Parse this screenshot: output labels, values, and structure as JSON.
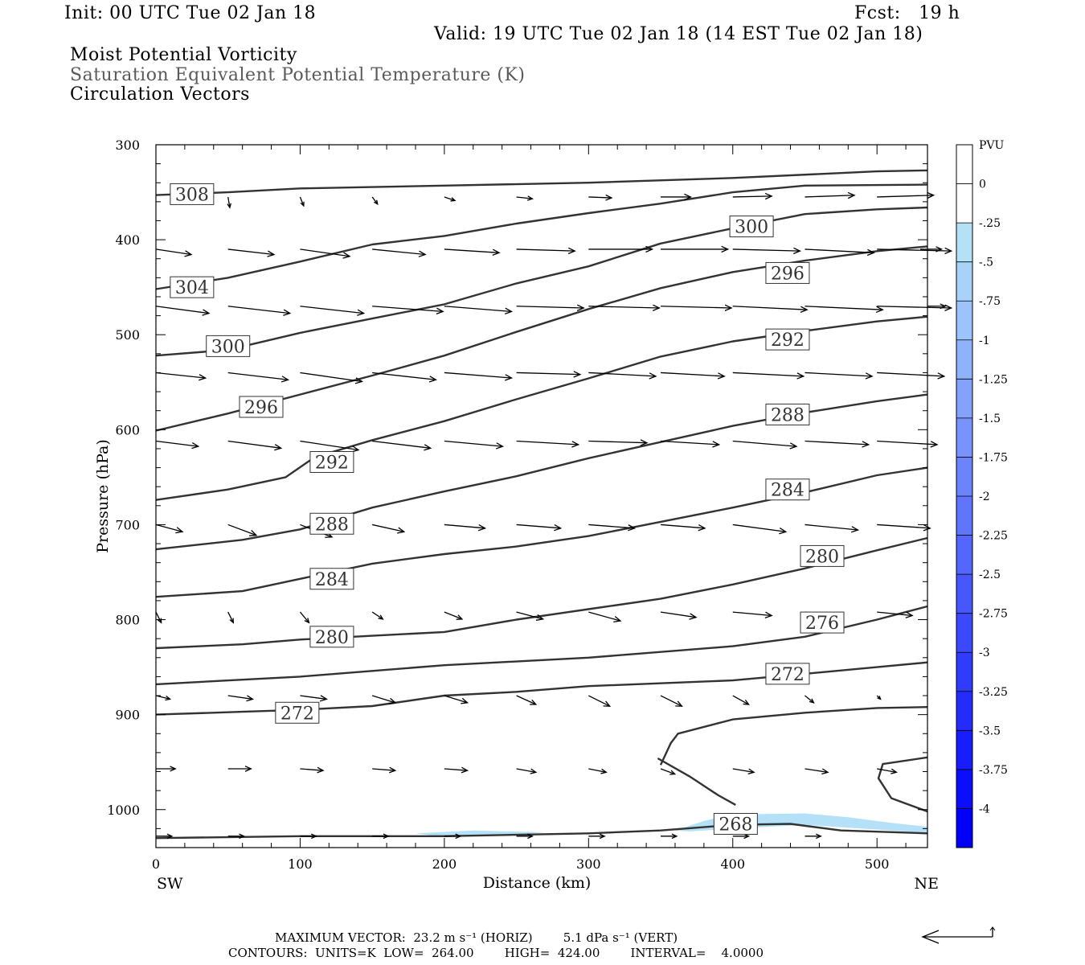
{
  "header": {
    "init": "Init: 00 UTC Tue 02 Jan 18",
    "fcst": "Fcst:   19 h",
    "valid": "Valid: 19 UTC Tue 02 Jan 18 (14 EST Tue 02 Jan 18)",
    "field1": "Moist Potential Vorticity",
    "field2": "Saturation Equivalent Potential Temperature (K)",
    "field3": "Circulation Vectors"
  },
  "footer": {
    "max_vector": "MAXIMUM VECTOR:  23.2 m s⁻¹ (HORIZ)        5.1 dPa s⁻¹ (VERT)",
    "contours": "CONTOURS:  UNITS=K  LOW=  264.00        HIGH=  424.00        INTERVAL=    4.0000"
  },
  "chart_data": {
    "type": "cross-section",
    "xlabel": "Distance (km)",
    "ylabel": "Pressure (hPa)",
    "xlim": [
      0,
      535
    ],
    "ylim": [
      300,
      1040
    ],
    "x_ticks": [
      "0",
      "100",
      "200",
      "300",
      "400",
      "500"
    ],
    "y_ticks": [
      "300",
      "400",
      "500",
      "600",
      "700",
      "800",
      "900",
      "1000"
    ],
    "x_end_labels": {
      "left": "SW",
      "right": "NE"
    },
    "colorbar": {
      "unit": "PVU",
      "labels": [
        "0",
        "-.25",
        "-.5",
        "-.75",
        "-1",
        "-1.25",
        "-1.5",
        "-1.75",
        "-2",
        "-2.25",
        "-2.5",
        "-2.75",
        "-3",
        "-3.25",
        "-3.5",
        "-3.75",
        "-4"
      ],
      "colors": [
        "#ffffff",
        "#ffffff",
        "#b4e1f8",
        "#a8d2fa",
        "#9cc3fb",
        "#90b2fb",
        "#84a2fb",
        "#7893fb",
        "#6c84fb",
        "#6075fb",
        "#5466fb",
        "#4857fb",
        "#3c48fb",
        "#303bfb",
        "#242bfb",
        "#181dfb",
        "#0c0efb",
        "#0000f8"
      ]
    },
    "contours": [
      {
        "label": "308",
        "points": [
          [
            0,
            353
          ],
          [
            50,
            350
          ],
          [
            100,
            346
          ],
          [
            200,
            343
          ],
          [
            300,
            340
          ],
          [
            400,
            335
          ],
          [
            500,
            328
          ],
          [
            535,
            327
          ]
        ],
        "label_at": [
          25,
          352
        ]
      },
      {
        "label": "304",
        "points": [
          [
            0,
            452
          ],
          [
            50,
            440
          ],
          [
            100,
            423
          ],
          [
            150,
            405
          ],
          [
            200,
            396
          ],
          [
            250,
            383
          ],
          [
            300,
            372
          ],
          [
            350,
            362
          ],
          [
            400,
            350
          ],
          [
            450,
            343
          ],
          [
            535,
            342
          ]
        ],
        "label_at": [
          25,
          450
        ]
      },
      {
        "label": "300",
        "points": [
          [
            0,
            522
          ],
          [
            50,
            516
          ],
          [
            100,
            498
          ],
          [
            150,
            483
          ],
          [
            200,
            468
          ],
          [
            250,
            446
          ],
          [
            300,
            428
          ],
          [
            350,
            404
          ],
          [
            400,
            388
          ],
          [
            450,
            373
          ],
          [
            500,
            368
          ],
          [
            535,
            366
          ]
        ],
        "label_at": [
          50,
          512
        ],
        "label2": "300",
        "label2_at": [
          413,
          386
        ]
      },
      {
        "label": "296",
        "points": [
          [
            0,
            601
          ],
          [
            50,
            583
          ],
          [
            100,
            563
          ],
          [
            150,
            543
          ],
          [
            200,
            522
          ],
          [
            250,
            497
          ],
          [
            300,
            473
          ],
          [
            350,
            451
          ],
          [
            400,
            434
          ],
          [
            450,
            422
          ],
          [
            500,
            412
          ],
          [
            535,
            407
          ]
        ],
        "label_at": [
          73,
          576
        ],
        "label2": "296",
        "label2_at": [
          438,
          435
        ]
      },
      {
        "label": "292",
        "points": [
          [
            0,
            674
          ],
          [
            50,
            663
          ],
          [
            90,
            650
          ],
          [
            110,
            629
          ],
          [
            150,
            611
          ],
          [
            200,
            591
          ],
          [
            250,
            568
          ],
          [
            300,
            546
          ],
          [
            350,
            523
          ],
          [
            400,
            507
          ],
          [
            450,
            496
          ],
          [
            500,
            486
          ],
          [
            535,
            481
          ]
        ],
        "label_at": [
          122,
          634
        ],
        "label2": "292",
        "label2_at": [
          438,
          505
        ]
      },
      {
        "label": "288",
        "points": [
          [
            0,
            726
          ],
          [
            60,
            716
          ],
          [
            100,
            705
          ],
          [
            150,
            682
          ],
          [
            200,
            665
          ],
          [
            250,
            649
          ],
          [
            300,
            630
          ],
          [
            350,
            613
          ],
          [
            400,
            596
          ],
          [
            450,
            582
          ],
          [
            500,
            570
          ],
          [
            535,
            563
          ]
        ],
        "label_at": [
          122,
          699
        ],
        "label2": "288",
        "label2_at": [
          438,
          584
        ]
      },
      {
        "label": "284",
        "points": [
          [
            0,
            776
          ],
          [
            60,
            770
          ],
          [
            100,
            757
          ],
          [
            150,
            741
          ],
          [
            200,
            731
          ],
          [
            250,
            723
          ],
          [
            300,
            712
          ],
          [
            350,
            697
          ],
          [
            400,
            682
          ],
          [
            450,
            666
          ],
          [
            500,
            648
          ],
          [
            535,
            640
          ]
        ],
        "label_at": [
          122,
          757
        ],
        "label2": "284",
        "label2_at": [
          438,
          663
        ]
      },
      {
        "label": "280",
        "points": [
          [
            0,
            830
          ],
          [
            60,
            826
          ],
          [
            100,
            821
          ],
          [
            150,
            817
          ],
          [
            200,
            813
          ],
          [
            250,
            800
          ],
          [
            300,
            789
          ],
          [
            350,
            778
          ],
          [
            400,
            763
          ],
          [
            450,
            746
          ],
          [
            500,
            727
          ],
          [
            535,
            714
          ]
        ],
        "label_at": [
          122,
          818
        ],
        "label2": "280",
        "label2_at": [
          462,
          733
        ]
      },
      {
        "label": "276",
        "points": [
          [
            0,
            868
          ],
          [
            100,
            860
          ],
          [
            200,
            848
          ],
          [
            300,
            840
          ],
          [
            400,
            828
          ],
          [
            450,
            818
          ],
          [
            500,
            800
          ],
          [
            535,
            786
          ]
        ],
        "label_at": null,
        "label2": "276",
        "label2_at": [
          462,
          803
        ]
      },
      {
        "label": "272",
        "points": [
          [
            0,
            900
          ],
          [
            60,
            897
          ],
          [
            100,
            895
          ],
          [
            150,
            891
          ],
          [
            200,
            880
          ],
          [
            250,
            876
          ],
          [
            300,
            870
          ],
          [
            400,
            864
          ],
          [
            450,
            857
          ],
          [
            500,
            850
          ],
          [
            535,
            845
          ]
        ],
        "label_at": [
          98,
          898
        ],
        "label2": "272",
        "label2_at": [
          438,
          857
        ]
      },
      {
        "label": "",
        "points": [
          [
            350,
            953
          ],
          [
            357,
            930
          ],
          [
            362,
            920
          ],
          [
            400,
            905
          ],
          [
            450,
            898
          ],
          [
            500,
            893
          ],
          [
            535,
            892
          ]
        ],
        "label_at": null
      },
      {
        "label": "",
        "points": [
          [
            348,
            946
          ],
          [
            370,
            965
          ],
          [
            390,
            985
          ],
          [
            402,
            995
          ]
        ],
        "label_at": null
      },
      {
        "label": "",
        "points": [
          [
            535,
            945
          ],
          [
            504,
            952
          ],
          [
            501,
            967
          ],
          [
            510,
            988
          ],
          [
            535,
            1002
          ]
        ],
        "label_at": null
      },
      {
        "label": "268",
        "points": [
          [
            0,
            1030
          ],
          [
            100,
            1028
          ],
          [
            200,
            1028
          ],
          [
            300,
            1025
          ],
          [
            350,
            1022
          ],
          [
            400,
            1016
          ],
          [
            440,
            1015
          ],
          [
            475,
            1022
          ],
          [
            535,
            1025
          ]
        ],
        "label_at": [
          402,
          1015
        ]
      }
    ],
    "pv_shading": [
      [
        360,
        1022
      ],
      [
        380,
        1012
      ],
      [
        400,
        1005
      ],
      [
        450,
        1004
      ],
      [
        480,
        1008
      ],
      [
        510,
        1014
      ],
      [
        535,
        1018
      ],
      [
        535,
        1025
      ],
      [
        510,
        1022
      ],
      [
        480,
        1019
      ],
      [
        450,
        1016
      ],
      [
        400,
        1020
      ],
      [
        370,
        1023
      ]
    ],
    "pv_shading_small": [
      [
        180,
        1025
      ],
      [
        220,
        1022
      ],
      [
        270,
        1024
      ],
      [
        235,
        1028
      ],
      [
        195,
        1028
      ]
    ],
    "vector_rows": [
      {
        "p": 355,
        "xs": [
          50,
          100,
          150,
          200,
          250,
          300,
          350,
          400,
          450,
          500
        ],
        "u": [
          0.1,
          0.2,
          0.3,
          0.6,
          0.9,
          1.3,
          1.7,
          2.2,
          2.8,
          3.2
        ],
        "w": [
          0.6,
          0.5,
          0.4,
          0.2,
          0.1,
          0.05,
          0.0,
          -0.05,
          -0.1,
          -0.1
        ]
      },
      {
        "p": 410,
        "xs": [
          0,
          50,
          100,
          150,
          200,
          250,
          300,
          350,
          400,
          450,
          500,
          530
        ],
        "u": [
          2.0,
          2.6,
          2.8,
          3.0,
          3.1,
          3.3,
          3.6,
          3.8,
          3.8,
          3.9,
          4.2,
          1.2
        ],
        "w": [
          0.3,
          0.3,
          0.4,
          0.3,
          0.2,
          0.1,
          0.0,
          0.0,
          0.1,
          0.2,
          0.1,
          0.0
        ]
      },
      {
        "p": 470,
        "xs": [
          0,
          50,
          100,
          150,
          200,
          250,
          300,
          350,
          400,
          450,
          500,
          535
        ],
        "u": [
          3.0,
          3.5,
          3.6,
          4.0,
          3.8,
          3.8,
          4.0,
          4.0,
          4.2,
          4.4,
          4.2,
          1.0
        ],
        "w": [
          0.4,
          0.4,
          0.4,
          0.3,
          0.3,
          0.1,
          0.1,
          0.1,
          0.2,
          0.2,
          0.1,
          0.0
        ]
      },
      {
        "p": 540,
        "xs": [
          0,
          50,
          100,
          150,
          200,
          250,
          300,
          350,
          400,
          450,
          500
        ],
        "u": [
          2.8,
          3.4,
          3.5,
          3.6,
          3.8,
          3.6,
          3.8,
          3.6,
          4.0,
          3.8,
          3.8
        ],
        "w": [
          0.3,
          0.4,
          0.5,
          0.4,
          0.3,
          0.1,
          0.2,
          0.2,
          0.2,
          0.2,
          0.2
        ]
      },
      {
        "p": 612,
        "xs": [
          0,
          50,
          100,
          150,
          200,
          250,
          300,
          350,
          400,
          450,
          500
        ],
        "u": [
          2.4,
          3.0,
          3.3,
          3.3,
          3.3,
          3.5,
          3.3,
          3.3,
          3.6,
          3.6,
          3.4
        ],
        "w": [
          0.3,
          0.4,
          0.5,
          0.4,
          0.3,
          0.2,
          0.1,
          0.2,
          0.3,
          0.2,
          0.2
        ]
      },
      {
        "p": 700,
        "xs": [
          0,
          50,
          100,
          150,
          200,
          250,
          300,
          350,
          400,
          450,
          500
        ],
        "u": [
          1.5,
          1.6,
          1.8,
          1.8,
          2.3,
          2.5,
          2.6,
          2.5,
          3.0,
          3.0,
          3.0
        ],
        "w": [
          0.4,
          0.6,
          0.7,
          0.4,
          0.2,
          0.2,
          0.2,
          0.2,
          0.4,
          0.3,
          0.2
        ]
      },
      {
        "p": 792,
        "xs": [
          0,
          50,
          100,
          150,
          200,
          250,
          300,
          350,
          400,
          450,
          500
        ],
        "u": [
          0.3,
          0.3,
          0.5,
          0.6,
          1.0,
          1.5,
          1.8,
          2.0,
          2.2,
          2.1,
          2.0
        ],
        "w": [
          0.6,
          0.6,
          0.6,
          0.4,
          0.4,
          0.4,
          0.5,
          0.3,
          0.2,
          0.2,
          0.2
        ]
      },
      {
        "p": 880,
        "xs": [
          0,
          50,
          100,
          150,
          200,
          250,
          300,
          350,
          400,
          450,
          500
        ],
        "u": [
          0.8,
          1.4,
          1.5,
          1.3,
          1.3,
          1.1,
          1.2,
          1.2,
          0.9,
          0.5,
          0.2
        ],
        "w": [
          0.2,
          0.2,
          0.2,
          0.4,
          0.4,
          0.5,
          0.6,
          0.6,
          0.5,
          0.4,
          0.2
        ]
      },
      {
        "p": 957,
        "xs": [
          0,
          50,
          100,
          150,
          200,
          250,
          300,
          350,
          400,
          450,
          500
        ],
        "u": [
          1.1,
          1.3,
          1.3,
          1.3,
          1.3,
          1.1,
          1.0,
          0.8,
          1.2,
          1.3,
          1.1
        ],
        "w": [
          0.0,
          0.0,
          0.1,
          0.1,
          0.1,
          0.2,
          0.2,
          0.3,
          0.2,
          0.2,
          0.2
        ]
      },
      {
        "p": 1028,
        "xs": [
          0,
          50,
          100,
          150,
          200,
          250,
          300,
          350,
          400,
          450
        ],
        "u": [
          0.9,
          0.9,
          0.9,
          0.9,
          0.9,
          0.9,
          0.9,
          0.9,
          0.9,
          0.9
        ],
        "w": [
          0,
          0,
          0,
          0,
          0,
          0,
          0,
          0,
          0,
          0
        ]
      }
    ]
  }
}
